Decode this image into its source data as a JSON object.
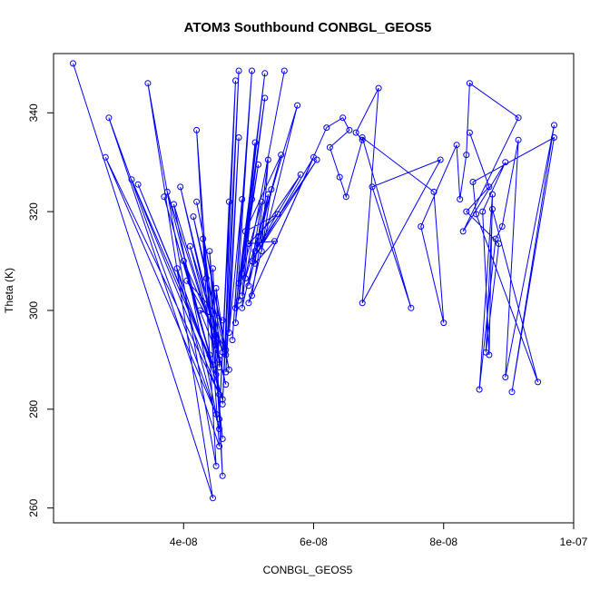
{
  "chart_data": {
    "type": "line",
    "title": "ATOM3 Southbound CONBGL_GEOS5",
    "xlabel": "CONBGL_GEOS5",
    "ylabel": "Theta (K)",
    "xlim": [
      2e-08,
      1e-07
    ],
    "ylim": [
      257,
      352
    ],
    "x_ticks": [
      {
        "value": 4e-08,
        "label": "4e-08"
      },
      {
        "value": 6e-08,
        "label": "6e-08"
      },
      {
        "value": 8e-08,
        "label": "8e-08"
      },
      {
        "value": 1e-07,
        "label": "1e-07"
      }
    ],
    "y_ticks": [
      {
        "value": 260,
        "label": "260"
      },
      {
        "value": 280,
        "label": "280"
      },
      {
        "value": 300,
        "label": "300"
      },
      {
        "value": 320,
        "label": "320"
      },
      {
        "value": 340,
        "label": "340"
      }
    ],
    "grid": false,
    "colors": {
      "series": "#0000ff",
      "axes": "#000000"
    },
    "series": [
      {
        "marker": "open-circle",
        "points": [
          [
            2.3e-08,
            350
          ],
          [
            4.45e-08,
            262
          ],
          [
            3.45e-08,
            346
          ],
          [
            4.5e-08,
            268.5
          ],
          [
            4.2e-08,
            336.5
          ],
          [
            4.55e-08,
            272.5
          ],
          [
            2.85e-08,
            339
          ],
          [
            4.5e-08,
            279
          ],
          [
            2.8e-08,
            331
          ],
          [
            4.55e-08,
            283
          ],
          [
            3.2e-08,
            326.5
          ],
          [
            4.5e-08,
            287
          ],
          [
            3.3e-08,
            325.5
          ],
          [
            4.45e-08,
            289
          ],
          [
            3.7e-08,
            323
          ],
          [
            4.4e-08,
            291
          ],
          [
            3.75e-08,
            324
          ],
          [
            4.5e-08,
            293
          ],
          [
            3.85e-08,
            321.5
          ],
          [
            4.55e-08,
            276
          ],
          [
            3.9e-08,
            308.5
          ],
          [
            4.6e-08,
            282
          ],
          [
            4e-08,
            310
          ],
          [
            4.5e-08,
            295
          ],
          [
            3.95e-08,
            325
          ],
          [
            4.65e-08,
            285
          ],
          [
            4.1e-08,
            313
          ],
          [
            4.6e-08,
            291.5
          ],
          [
            4.15e-08,
            319
          ],
          [
            4.7e-08,
            288
          ],
          [
            4.2e-08,
            322
          ],
          [
            4.65e-08,
            292
          ],
          [
            4.05e-08,
            306
          ],
          [
            4.6e-08,
            298
          ],
          [
            4.25e-08,
            300
          ],
          [
            4.55e-08,
            290
          ],
          [
            4.3e-08,
            314.5
          ],
          [
            4.6e-08,
            274
          ],
          [
            4.35e-08,
            306.5
          ],
          [
            4.5e-08,
            293.5
          ],
          [
            4.45e-08,
            308.5
          ],
          [
            4.6e-08,
            266.5
          ],
          [
            4.4e-08,
            312
          ],
          [
            4.55e-08,
            288.5
          ],
          [
            4.5e-08,
            304.5
          ],
          [
            4.65e-08,
            291
          ],
          [
            4.7e-08,
            322
          ],
          [
            4.55e-08,
            278
          ],
          [
            4.8e-08,
            346.5
          ],
          [
            4.6e-08,
            281
          ],
          [
            4.85e-08,
            348.5
          ],
          [
            4.65e-08,
            287.5
          ],
          [
            4.85e-08,
            335
          ],
          [
            4.7e-08,
            295.5
          ],
          [
            4.9e-08,
            322.5
          ],
          [
            4.75e-08,
            294
          ],
          [
            5.05e-08,
            348.5
          ],
          [
            4.8e-08,
            297.5
          ],
          [
            5.25e-08,
            348
          ],
          [
            4.8e-08,
            300.5
          ],
          [
            5.25e-08,
            343
          ],
          [
            4.85e-08,
            302
          ],
          [
            5.1e-08,
            334
          ],
          [
            4.9e-08,
            303
          ],
          [
            5.55e-08,
            348.5
          ],
          [
            4.95e-08,
            306.5
          ],
          [
            5.75e-08,
            341.5
          ],
          [
            5e-08,
            301.5
          ],
          [
            6e-08,
            331
          ],
          [
            5.05e-08,
            310
          ],
          [
            6.05e-08,
            330.5
          ],
          [
            5.1e-08,
            312
          ],
          [
            5.8e-08,
            327.5
          ],
          [
            5.15e-08,
            315
          ],
          [
            5.5e-08,
            331.5
          ],
          [
            4.95e-08,
            316
          ],
          [
            5.45e-08,
            319.5
          ],
          [
            5e-08,
            313.5
          ],
          [
            5.4e-08,
            314
          ],
          [
            5.1e-08,
            309.5
          ],
          [
            5.3e-08,
            330.5
          ],
          [
            5.2e-08,
            312
          ],
          [
            5.35e-08,
            324.5
          ],
          [
            5e-08,
            305
          ],
          [
            5.2e-08,
            322
          ],
          [
            4.9e-08,
            307.5
          ],
          [
            5.15e-08,
            329.5
          ],
          [
            4.85e-08,
            305.5
          ],
          [
            5.05e-08,
            322.5
          ],
          [
            4.9e-08,
            300.5
          ],
          [
            5.3e-08,
            323.5
          ],
          [
            5.05e-08,
            303
          ],
          [
            6.2e-08,
            337
          ],
          [
            6.45e-08,
            339
          ],
          [
            6.55e-08,
            336.5
          ],
          [
            6.25e-08,
            333
          ],
          [
            6.4e-08,
            327
          ],
          [
            6.5e-08,
            323
          ],
          [
            6.75e-08,
            334.5
          ],
          [
            6.65e-08,
            336
          ],
          [
            7e-08,
            345
          ],
          [
            6.75e-08,
            301.5
          ],
          [
            7.95e-08,
            330.5
          ],
          [
            6.9e-08,
            325
          ],
          [
            7.5e-08,
            300.5
          ],
          [
            6.75e-08,
            335
          ],
          [
            7.85e-08,
            324
          ],
          [
            8e-08,
            297.5
          ],
          [
            7.65e-08,
            317
          ],
          [
            8.2e-08,
            333.5
          ],
          [
            8.25e-08,
            322.5
          ],
          [
            8.35e-08,
            331.5
          ],
          [
            8.4e-08,
            346
          ],
          [
            9.15e-08,
            339
          ],
          [
            8.3e-08,
            316
          ],
          [
            8.95e-08,
            330
          ],
          [
            8.6e-08,
            320
          ],
          [
            8.7e-08,
            291
          ],
          [
            8.75e-08,
            323.5
          ],
          [
            8.55e-08,
            284
          ],
          [
            8.8e-08,
            314.5
          ],
          [
            8.9e-08,
            317
          ],
          [
            9.15e-08,
            334.5
          ],
          [
            8.95e-08,
            286.5
          ],
          [
            9.7e-08,
            337.5
          ],
          [
            9.05e-08,
            283.5
          ],
          [
            9.7e-08,
            335
          ],
          [
            8.45e-08,
            326
          ],
          [
            8.5e-08,
            319.5
          ],
          [
            9.45e-08,
            285.5
          ],
          [
            8.75e-08,
            320.5
          ],
          [
            8.65e-08,
            291.5
          ],
          [
            8.85e-08,
            313.5
          ],
          [
            8.35e-08,
            320
          ],
          [
            8.7e-08,
            325
          ],
          [
            8.4e-08,
            336
          ]
        ]
      }
    ]
  }
}
